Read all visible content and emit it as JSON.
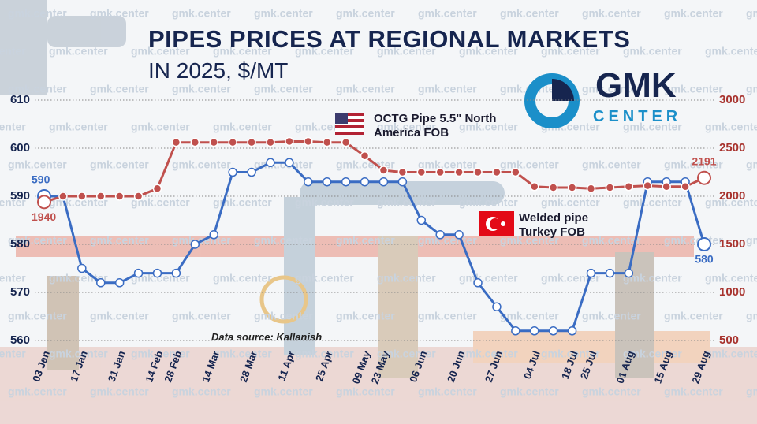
{
  "header": {
    "title": "PIPES PRICES AT REGIONAL MARKETS",
    "subtitle": "IN 2025, $/MT",
    "watermark": "gmk.center",
    "logo_top": "GMK",
    "logo_bottom": "CENTER"
  },
  "chart_data": {
    "type": "line",
    "categories": [
      "03 Jan",
      null,
      "17 Jan",
      null,
      "31 Jan",
      null,
      "14 Feb",
      "28 Feb",
      null,
      "14 Mar",
      null,
      "28 Mar",
      null,
      "11 Apr",
      null,
      "25 Apr",
      null,
      "09 May",
      "23 May",
      null,
      "06 Jun",
      null,
      "20 Jun",
      null,
      "27 Jun",
      null,
      "04 Jul",
      null,
      "18 Jul",
      "25 Jul",
      null,
      "01 Aug",
      null,
      "15 Aug",
      null,
      "29 Aug"
    ],
    "series": [
      {
        "name": "Welded pipe Turkey FOB",
        "color": "#3a6cc3",
        "values": [
          590,
          590,
          575,
          572,
          572,
          574,
          574,
          574,
          580,
          582,
          595,
          595,
          597,
          597,
          593,
          593,
          593,
          593,
          593,
          593,
          585,
          582,
          582,
          572,
          567,
          562,
          562,
          562,
          562,
          574,
          574,
          574,
          593,
          593,
          593,
          580
        ]
      },
      {
        "name": "OCTG Pipe 5.5\" North America FOB",
        "color": "#c0504d",
        "axis": "y2",
        "values": [
          1940,
          2000,
          2000,
          2000,
          2000,
          2000,
          2080,
          2560,
          2560,
          2560,
          2560,
          2560,
          2560,
          2570,
          2570,
          2560,
          2560,
          2420,
          2270,
          2250,
          2250,
          2250,
          2250,
          2250,
          2250,
          2250,
          2100,
          2090,
          2090,
          2080,
          2090,
          2100,
          2110,
          2100,
          2100,
          2191
        ]
      }
    ],
    "ylim": [
      560,
      610
    ],
    "yticks": [
      560,
      570,
      580,
      590,
      600,
      610
    ],
    "y2lim": [
      500,
      3000
    ],
    "y2ticks": [
      500,
      1000,
      1500,
      2000,
      2500,
      3000
    ],
    "grid": true,
    "annotation": "Data source: Kallanish"
  }
}
